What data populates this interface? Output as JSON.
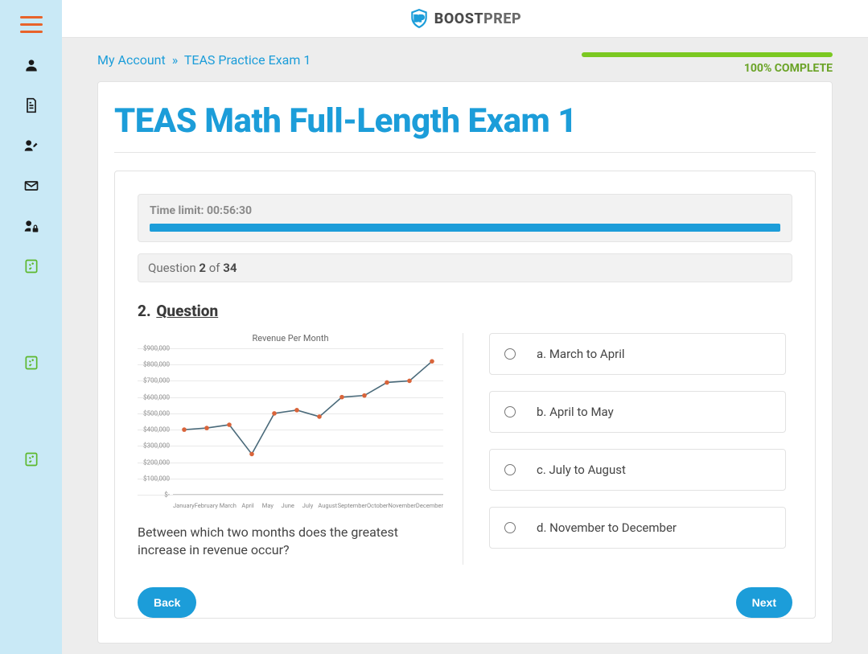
{
  "brand": {
    "name_bold": "BOOST",
    "name_light": "PREP",
    "shield_color": "#1c9dd9"
  },
  "breadcrumb": {
    "account": "My Account",
    "sep": "»",
    "page": "TEAS Practice Exam 1"
  },
  "progress": {
    "percent": 100,
    "label": "100% COMPLETE",
    "color": "#7bc821",
    "label_color": "#6aa326"
  },
  "page_title": "TEAS Math Full-Length Exam 1",
  "timer": {
    "prefix": "Time limit: ",
    "value": "00:56:30",
    "bar_color": "#1c9dd9",
    "fill": 100
  },
  "question_counter": {
    "prefix": "Question ",
    "current": "2",
    "of": " of ",
    "total": "34"
  },
  "question": {
    "number": "2.",
    "label": "Question",
    "prompt": "Between which two months does the greatest increase in revenue occur?"
  },
  "chart": {
    "type": "line",
    "title": "Revenue Per Month",
    "xlabels": [
      "January",
      "February",
      "March",
      "April",
      "May",
      "June",
      "July",
      "August",
      "September",
      "October",
      "November",
      "December"
    ],
    "ylabels": [
      "$-",
      "$100,000",
      "$200,000",
      "$300,000",
      "$400,000",
      "$500,000",
      "$600,000",
      "$700,000",
      "$800,000",
      "$900,000"
    ],
    "ymin": 0,
    "ymax": 900000,
    "ystep": 100000,
    "values": [
      400000,
      410000,
      430000,
      250000,
      500000,
      520000,
      480000,
      600000,
      610000,
      690000,
      700000,
      820000
    ],
    "line_color": "#4a6a7a",
    "marker_color": "#d9643a",
    "marker_radius": 2.8,
    "line_width": 1.6,
    "grid_color": "#e9e9e9",
    "axis_color": "#cccccc",
    "label_color": "#888888",
    "label_fontsize": 8
  },
  "choices": [
    {
      "key": "a.",
      "text": "March to April"
    },
    {
      "key": "b.",
      "text": "April to May"
    },
    {
      "key": "c.",
      "text": "July to August"
    },
    {
      "key": "d.",
      "text": "November to December"
    }
  ],
  "buttons": {
    "back": "Back",
    "next": "Next",
    "color": "#1c9dd9"
  },
  "colors": {
    "accent": "#1c9dd9",
    "sidebar_bg": "#c9e9f6",
    "hamburger": "#e8632a",
    "green": "#5cb82c"
  }
}
